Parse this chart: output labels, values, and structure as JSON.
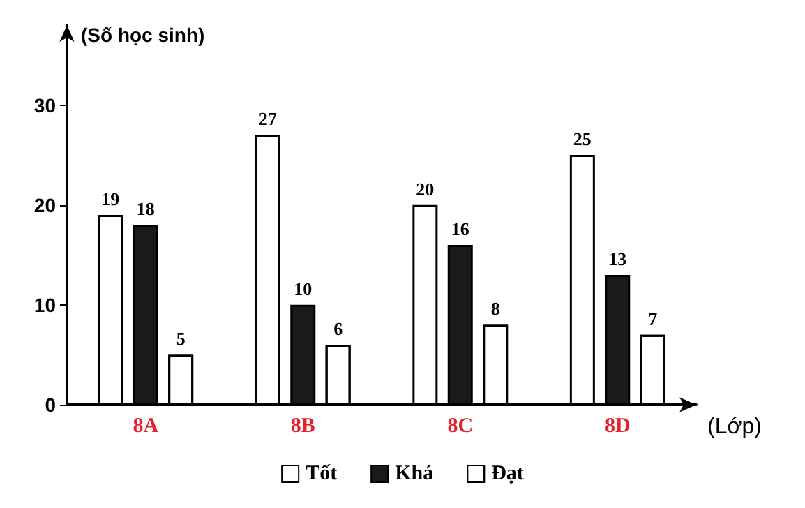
{
  "chart_data": {
    "type": "bar",
    "ylabel": "(Số học sinh)",
    "xlabel": "(Lớp)",
    "categories": [
      "8A",
      "8B",
      "8C",
      "8D"
    ],
    "series": [
      {
        "name": "Tốt",
        "color": "#ffffff",
        "values": [
          19,
          27,
          20,
          25
        ]
      },
      {
        "name": "Khá",
        "color": "#1a1a1a",
        "values": [
          18,
          10,
          16,
          13
        ]
      },
      {
        "name": "Đạt",
        "color": "#ffffff",
        "values": [
          5,
          6,
          8,
          7
        ]
      }
    ],
    "ylim": [
      0,
      38
    ],
    "yticks": [
      0,
      10,
      20,
      30
    ],
    "grid": false,
    "legend": "bottom",
    "data_labels": true
  }
}
